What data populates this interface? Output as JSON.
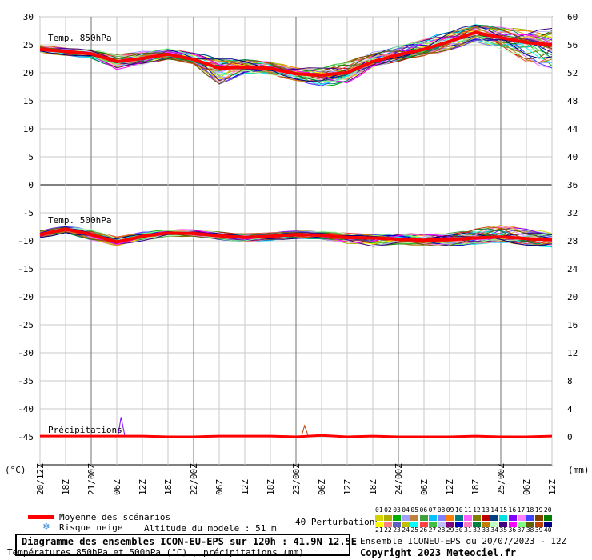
{
  "chart_data": {
    "type": "line",
    "title": "Diagramme des ensembles ICON-EU-EPS sur 120h : 41.9N 12.5E",
    "subtitle": "Températures 850hPa et 500hPa (°C) , précipitations (mm)",
    "left_unit": "(°C)",
    "right_unit": "(mm)",
    "left_axis_ticks": [
      "30",
      "25",
      "20",
      "15",
      "10",
      "5",
      "0",
      "-5",
      "-10",
      "-15",
      "-20",
      "-25",
      "-30",
      "-35",
      "-40",
      "-45"
    ],
    "right_axis_ticks": [
      "60",
      "56",
      "52",
      "48",
      "44",
      "40",
      "36",
      "32",
      "28",
      "24",
      "20",
      "16",
      "12",
      "8",
      "4",
      "0"
    ],
    "x_tick_labels": [
      "20/12Z",
      "18Z",
      "21/00Z",
      "06Z",
      "12Z",
      "18Z",
      "22/00Z",
      "06Z",
      "12Z",
      "18Z",
      "23/00Z",
      "06Z",
      "12Z",
      "18Z",
      "24/00Z",
      "06Z",
      "12Z",
      "18Z",
      "25/00Z",
      "06Z",
      "12Z"
    ],
    "panel_labels": {
      "t850": "Temp. 850hPa",
      "t500": "Temp. 500hPa",
      "precip": "Précipitations"
    },
    "series": [
      {
        "name": "Temp. 850hPa",
        "x_hours": [
          0,
          6,
          12,
          18,
          24,
          30,
          36,
          42,
          48,
          54,
          60,
          66,
          72,
          78,
          84,
          90,
          96,
          102,
          108,
          114,
          120
        ],
        "mean": [
          24.2,
          23.8,
          23.4,
          22.0,
          22.6,
          23.3,
          22.4,
          20.8,
          21.0,
          20.8,
          19.8,
          19.6,
          20.0,
          22.0,
          23.2,
          24.2,
          25.6,
          27.2,
          26.3,
          25.4,
          25.0
        ],
        "min": [
          23.5,
          23.1,
          22.6,
          20.5,
          21.5,
          22.4,
          21.4,
          17.8,
          19.8,
          19.4,
          18.6,
          17.5,
          18.0,
          21.0,
          22.0,
          22.9,
          24.0,
          25.5,
          24.0,
          22.0,
          20.5
        ],
        "max": [
          24.9,
          24.5,
          24.2,
          23.3,
          23.9,
          24.3,
          23.6,
          22.8,
          22.4,
          22.0,
          21.0,
          21.0,
          22.0,
          23.8,
          24.8,
          26.0,
          27.6,
          28.7,
          28.2,
          27.8,
          28.0
        ]
      },
      {
        "name": "Temp. 500hPa",
        "x_hours": [
          0,
          6,
          12,
          18,
          24,
          30,
          36,
          42,
          48,
          54,
          60,
          66,
          72,
          78,
          84,
          90,
          96,
          102,
          108,
          114,
          120
        ],
        "mean": [
          -8.9,
          -7.9,
          -8.9,
          -10.2,
          -9.2,
          -8.6,
          -8.7,
          -9.1,
          -9.4,
          -9.2,
          -8.9,
          -9.0,
          -9.4,
          -9.5,
          -9.7,
          -9.9,
          -9.8,
          -9.5,
          -9.3,
          -9.6,
          -9.8
        ],
        "min": [
          -9.6,
          -8.6,
          -9.9,
          -10.9,
          -10.0,
          -9.2,
          -9.3,
          -9.8,
          -10.2,
          -10.0,
          -9.6,
          -9.7,
          -10.5,
          -11.0,
          -10.6,
          -10.9,
          -11.0,
          -10.6,
          -10.4,
          -10.8,
          -11.2
        ],
        "max": [
          -8.2,
          -7.3,
          -7.9,
          -9.3,
          -8.4,
          -8.0,
          -8.0,
          -8.4,
          -8.7,
          -8.5,
          -8.2,
          -8.2,
          -8.6,
          -8.8,
          -8.6,
          -8.8,
          -8.6,
          -7.8,
          -7.2,
          -7.8,
          -8.4
        ]
      },
      {
        "name": "Précipitations",
        "x_hours": [
          0,
          6,
          12,
          18,
          24,
          30,
          36,
          42,
          48,
          54,
          60,
          66,
          72,
          78,
          84,
          90,
          96,
          102,
          108,
          114,
          120
        ],
        "mean": [
          0.1,
          0.1,
          0.1,
          0.1,
          0.1,
          0.0,
          0.0,
          0.1,
          0.1,
          0.1,
          0.0,
          0.2,
          0.0,
          0.1,
          0.0,
          0.0,
          0.0,
          0.1,
          0.0,
          0.0,
          0.1
        ],
        "spikes": [
          {
            "hour": 19,
            "value": 2.8
          },
          {
            "hour": 62,
            "value": 1.6
          }
        ]
      }
    ],
    "ylim_left": [
      -47,
      30
    ],
    "grid": true
  },
  "legend": {
    "mean_label": "Moyenne des scénarios",
    "snow_label": "Risque neige",
    "altitude": "Altitude du modele : 51 m",
    "perturbations_label": "40 Perturbations",
    "perturbation_numbers_top": [
      "01",
      "02",
      "03",
      "04",
      "05",
      "06",
      "07",
      "08",
      "09",
      "10",
      "11",
      "12",
      "13",
      "14",
      "15",
      "16",
      "17",
      "18",
      "19",
      "20"
    ],
    "perturbation_numbers_bottom": [
      "21",
      "22",
      "23",
      "24",
      "25",
      "26",
      "27",
      "28",
      "29",
      "30",
      "31",
      "32",
      "33",
      "34",
      "35",
      "36",
      "37",
      "38",
      "39",
      "40"
    ],
    "perturbation_colors_top": [
      "#d4d400",
      "#b0b000",
      "#00b000",
      "#a0a0ff",
      "#c08040",
      "#40a040",
      "#00c0ff",
      "#8080ff",
      "#ff8000",
      "#008080",
      "#ff60ff",
      "#808000",
      "#c00000",
      "#004080",
      "#00e0e0",
      "#8000ff",
      "#ff80ff",
      "#4040ff",
      "#804000",
      "#008000"
    ],
    "perturbation_colors_bottom": [
      "#ffff00",
      "#ff8080",
      "#6060c0",
      "#c0c000",
      "#00ffff",
      "#ff4040",
      "#40c040",
      "#c0c0ff",
      "#800080",
      "#0000c0",
      "#ff80c0",
      "#008040",
      "#c08000",
      "#c0ffc0",
      "#400080",
      "#ff00ff",
      "#80ff80",
      "#606000",
      "#c04000",
      "#000080"
    ]
  },
  "footer": {
    "ensemble_info": "Ensemble ICONEU-EPS du 20/07/2023 - 12Z",
    "copyright": "Copyright 2023 Meteociel.fr"
  }
}
